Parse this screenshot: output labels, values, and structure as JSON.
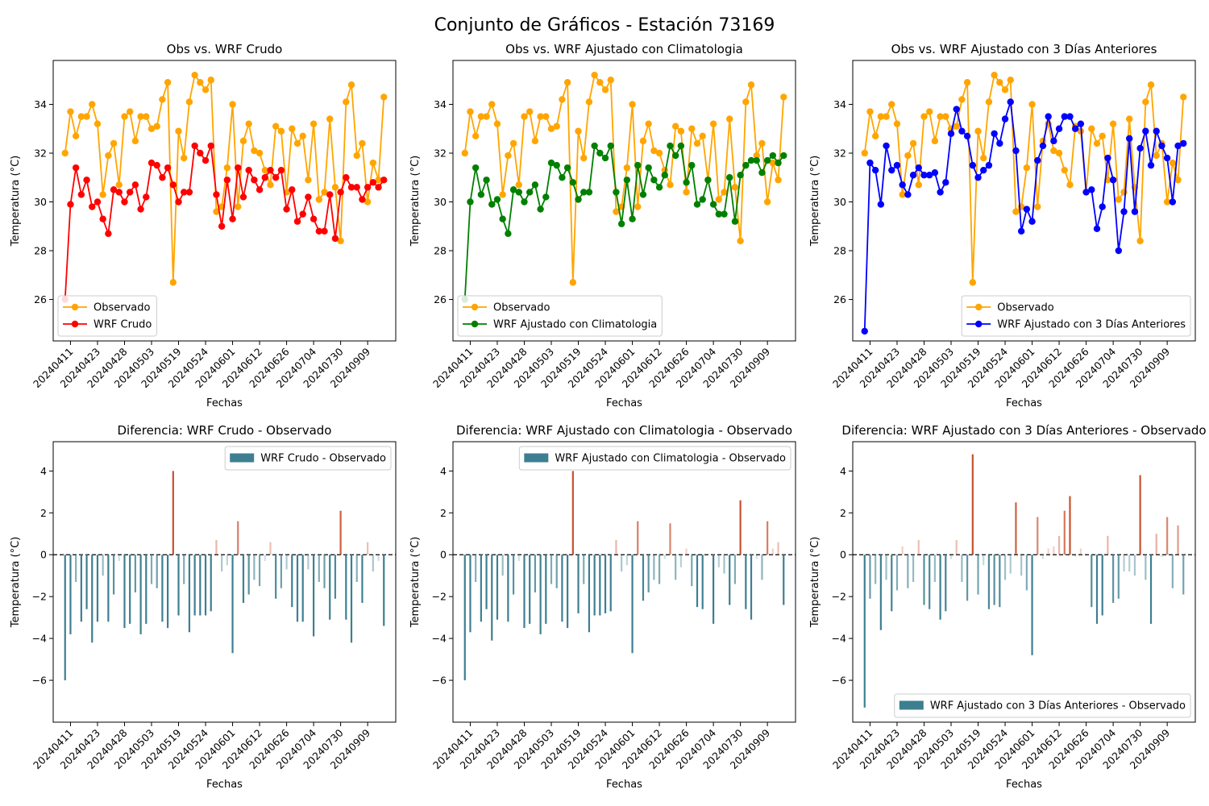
{
  "chart_data": {
    "suptitle": "Conjunto de Gráficos - Estación 73169",
    "colors": {
      "observed": "#ffa500",
      "raw": "#ff0000",
      "clim": "#008000",
      "prev3": "#0000ff",
      "diff_negative": "#3d7f91",
      "diff_positive": "#c8512f"
    },
    "x_tick_labels": [
      "20240411",
      "20240423",
      "20240428",
      "20240503",
      "20240519",
      "20240524",
      "20240601",
      "20240612",
      "20240626",
      "20240704",
      "20240730",
      "20240909"
    ],
    "x_tick_indices": [
      1,
      6,
      11,
      16,
      21,
      26,
      31,
      36,
      41,
      46,
      51,
      56
    ],
    "observed": [
      32.0,
      33.7,
      32.7,
      33.5,
      33.5,
      34.0,
      33.2,
      30.3,
      31.9,
      32.4,
      30.7,
      33.5,
      33.7,
      32.5,
      33.5,
      33.5,
      33.0,
      33.1,
      34.2,
      34.9,
      26.7,
      32.9,
      31.8,
      34.1,
      35.2,
      34.9,
      34.6,
      35.0,
      29.6,
      29.8,
      31.4,
      34.0,
      29.8,
      32.5,
      33.2,
      32.1,
      32.0,
      31.3,
      30.7,
      33.1,
      32.9,
      30.4,
      33.0,
      32.4,
      32.7,
      30.9,
      33.2,
      30.1,
      30.4,
      33.4,
      30.6,
      28.4,
      34.1,
      34.8,
      31.9,
      32.4,
      30.0,
      31.6,
      30.9,
      34.3
    ],
    "panels": [
      {
        "type": "line",
        "title": "Obs vs. WRF Crudo",
        "xlabel": "Fechas",
        "ylabel": "Temperatura (°C)",
        "ylim": [
          24.3,
          35.8
        ],
        "yticks": [
          26,
          28,
          30,
          32,
          34
        ],
        "legend_position": "lower-left",
        "series": [
          {
            "name": "Observado",
            "color_key": "observed"
          },
          {
            "name": "WRF Crudo",
            "color_key": "raw",
            "values": [
              26.0,
              29.9,
              31.4,
              30.3,
              30.9,
              29.8,
              30.0,
              29.3,
              28.7,
              30.5,
              30.4,
              30.0,
              30.4,
              30.7,
              29.7,
              30.2,
              31.6,
              31.5,
              31.0,
              31.4,
              30.7,
              30.0,
              30.4,
              30.4,
              32.3,
              32.0,
              31.7,
              32.3,
              30.3,
              29.0,
              30.9,
              29.3,
              31.4,
              30.2,
              31.3,
              30.9,
              30.5,
              31.0,
              31.3,
              31.0,
              31.3,
              29.7,
              30.5,
              29.2,
              29.5,
              30.2,
              29.3,
              28.8,
              28.8,
              30.3,
              28.5,
              30.4,
              31.0,
              30.6,
              30.6,
              30.1,
              30.6,
              30.8,
              30.6,
              30.9
            ]
          }
        ]
      },
      {
        "type": "line",
        "title": "Obs vs. WRF Ajustado con Climatologia",
        "xlabel": "Fechas",
        "ylabel": "Temperatura (°C)",
        "ylim": [
          24.3,
          35.8
        ],
        "yticks": [
          26,
          28,
          30,
          32,
          34
        ],
        "legend_position": "lower-left",
        "series": [
          {
            "name": "Observado",
            "color_key": "observed"
          },
          {
            "name": "WRF Ajustado con Climatologia",
            "color_key": "clim",
            "values": [
              26.0,
              30.0,
              31.4,
              30.3,
              30.9,
              29.9,
              30.1,
              29.3,
              28.7,
              30.5,
              30.4,
              30.0,
              30.4,
              30.7,
              29.7,
              30.2,
              31.6,
              31.5,
              31.0,
              31.4,
              30.8,
              30.1,
              30.4,
              30.4,
              32.3,
              32.0,
              31.8,
              32.3,
              30.4,
              29.1,
              30.9,
              29.3,
              31.5,
              30.3,
              31.4,
              30.9,
              30.6,
              31.1,
              32.3,
              31.9,
              32.3,
              30.8,
              31.5,
              29.9,
              30.1,
              30.9,
              29.9,
              29.5,
              29.5,
              31.0,
              29.2,
              31.1,
              31.5,
              31.7,
              31.7,
              31.2,
              31.7,
              31.9,
              31.6,
              31.9
            ]
          }
        ]
      },
      {
        "type": "line",
        "title": "Obs vs. WRF Ajustado con 3 Días Anteriores",
        "xlabel": "Fechas",
        "ylabel": "Temperatura (°C)",
        "ylim": [
          24.3,
          35.8
        ],
        "yticks": [
          26,
          28,
          30,
          32,
          34
        ],
        "legend_position": "lower-right",
        "series": [
          {
            "name": "Observado",
            "color_key": "observed"
          },
          {
            "name": "WRF Ajustado con 3 Días Anteriores",
            "color_key": "prev3",
            "values": [
              24.7,
              31.6,
              31.3,
              29.9,
              32.3,
              31.3,
              31.5,
              30.7,
              30.3,
              31.1,
              31.4,
              31.1,
              31.1,
              31.2,
              30.4,
              30.8,
              32.8,
              33.8,
              32.9,
              32.7,
              31.5,
              31.0,
              31.3,
              31.5,
              32.8,
              32.4,
              33.4,
              34.1,
              32.1,
              28.8,
              29.7,
              29.2,
              31.7,
              32.3,
              33.5,
              32.5,
              33.0,
              33.5,
              33.5,
              33.0,
              33.2,
              30.4,
              30.5,
              28.9,
              29.8,
              31.8,
              30.9,
              28.0,
              29.6,
              32.6,
              29.6,
              32.2,
              32.9,
              31.5,
              32.9,
              32.3,
              31.8,
              30.0,
              32.3,
              32.4
            ]
          }
        ]
      },
      {
        "type": "bar",
        "title": "Diferencia: WRF Crudo - Observado",
        "xlabel": "Fechas",
        "ylabel": "Temperatura (°C)",
        "ylim": [
          -8.0,
          5.4
        ],
        "yticks": [
          -6,
          -4,
          -2,
          0,
          2,
          4
        ],
        "legend_position": "upper-right",
        "series": [
          {
            "name": "WRF Crudo - Observado",
            "values": [
              -6.0,
              -3.8,
              -1.3,
              -3.2,
              -2.6,
              -4.2,
              -3.2,
              -1.0,
              -3.2,
              -1.9,
              -0.3,
              -3.5,
              -3.3,
              -1.8,
              -3.8,
              -3.3,
              -1.4,
              -1.6,
              -3.2,
              -3.5,
              4.0,
              -2.9,
              -1.4,
              -3.7,
              -2.9,
              -2.9,
              -2.9,
              -2.7,
              0.7,
              -0.8,
              -0.5,
              -4.7,
              1.6,
              -2.3,
              -1.9,
              -1.2,
              -1.5,
              -0.3,
              0.6,
              -2.1,
              -1.6,
              -0.7,
              -2.5,
              -3.2,
              -3.2,
              -0.7,
              -3.9,
              -1.3,
              -1.6,
              -3.1,
              -2.1,
              2.1,
              -3.1,
              -4.2,
              -1.3,
              -2.3,
              0.6,
              -0.8,
              -0.3,
              -3.4
            ]
          }
        ]
      },
      {
        "type": "bar",
        "title": "Diferencia: WRF Ajustado con Climatologia - Observado",
        "xlabel": "Fechas",
        "ylabel": "Temperatura (°C)",
        "ylim": [
          -8.0,
          5.4
        ],
        "yticks": [
          -6,
          -4,
          -2,
          0,
          2,
          4
        ],
        "legend_position": "upper-right",
        "series": [
          {
            "name": "WRF Ajustado con Climatologia - Observado",
            "values": [
              -6.0,
              -3.7,
              -1.3,
              -3.2,
              -2.6,
              -4.1,
              -3.1,
              -1.0,
              -3.2,
              -1.9,
              -0.3,
              -3.5,
              -3.3,
              -1.8,
              -3.8,
              -3.3,
              -1.4,
              -1.6,
              -3.2,
              -3.5,
              4.0,
              -2.8,
              -1.4,
              -3.7,
              -2.9,
              -2.9,
              -2.8,
              -2.7,
              0.7,
              -0.8,
              -0.5,
              -4.7,
              1.6,
              -2.2,
              -1.8,
              -1.2,
              -1.4,
              -0.2,
              1.5,
              -1.2,
              -0.6,
              0.3,
              -1.5,
              -2.5,
              -2.6,
              0.0,
              -3.3,
              -0.6,
              -0.9,
              -2.4,
              -1.4,
              2.6,
              -2.6,
              -3.1,
              -0.2,
              -1.2,
              1.6,
              0.3,
              0.6,
              -2.4
            ]
          }
        ]
      },
      {
        "type": "bar",
        "title": "Diferencia: WRF Ajustado con 3 Días Anteriores - Observado",
        "xlabel": "Fechas",
        "ylabel": "Temperatura (°C)",
        "ylim": [
          -8.0,
          5.4
        ],
        "yticks": [
          -6,
          -4,
          -2,
          0,
          2,
          4
        ],
        "legend_position": "lower-right",
        "series": [
          {
            "name": "WRF Ajustado con 3 Días Anteriores - Observado",
            "values": [
              -7.3,
              -2.1,
              -1.4,
              -3.6,
              -1.2,
              -2.7,
              -1.7,
              0.4,
              -1.6,
              -1.3,
              0.7,
              -2.4,
              -2.6,
              -1.3,
              -3.1,
              -2.7,
              -0.2,
              0.7,
              -1.3,
              -2.2,
              4.8,
              -1.9,
              -0.5,
              -2.6,
              -2.4,
              -2.5,
              -1.2,
              -0.9,
              2.5,
              -1.0,
              -1.7,
              -4.8,
              1.8,
              -0.2,
              0.3,
              0.4,
              0.9,
              2.1,
              2.8,
              -0.1,
              0.3,
              -0.0,
              -2.5,
              -3.3,
              -2.9,
              0.9,
              -2.3,
              -2.1,
              -0.8,
              -0.8,
              -1.0,
              3.8,
              -1.2,
              -3.3,
              1.0,
              -0.1,
              1.8,
              -1.6,
              1.4,
              -1.9
            ]
          }
        ]
      }
    ]
  }
}
